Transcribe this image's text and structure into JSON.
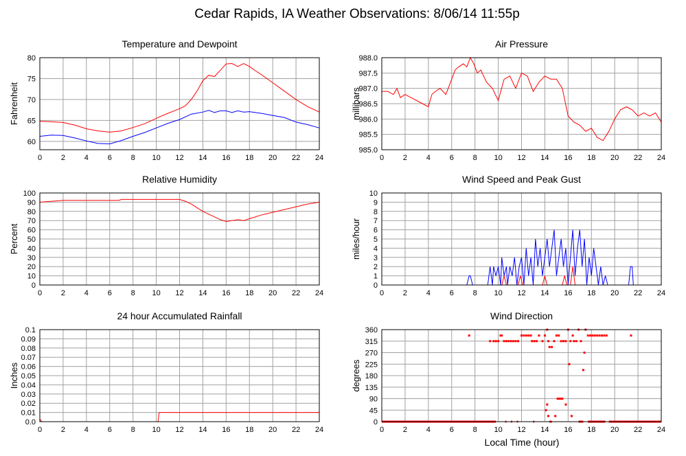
{
  "page": {
    "title": "Cedar Rapids, IA Weather Observations: 8/06/14 11:55p",
    "xlabel": "Local Time (hour)"
  },
  "colors": {
    "primary": "#ff0000",
    "secondary": "#0000ff",
    "grid": "#a0a0a0",
    "frame": "#000000"
  },
  "chart_data": [
    {
      "id": "temp",
      "type": "line",
      "title": "Temperature and Dewpoint",
      "ylabel": "Fahrenheit",
      "xlim": [
        0,
        24
      ],
      "ylim": [
        58,
        80
      ],
      "xticks": [
        0,
        2,
        4,
        6,
        8,
        10,
        12,
        14,
        16,
        18,
        20,
        22,
        24
      ],
      "yticks": [
        60,
        65,
        70,
        75,
        80
      ],
      "series": [
        {
          "role": "temperature",
          "color": "#ff0000",
          "x": [
            0,
            1,
            2,
            3,
            4,
            5,
            6,
            7,
            8,
            9,
            10,
            11,
            12,
            12.5,
            13,
            13.5,
            14,
            14.5,
            15,
            15.5,
            16,
            16.5,
            17,
            17.5,
            18,
            18.5,
            19,
            20,
            21,
            22,
            23,
            24
          ],
          "y": [
            64.8,
            64.7,
            64.5,
            63.9,
            63.0,
            62.5,
            62.2,
            62.5,
            63.3,
            64.2,
            65.5,
            66.7,
            67.8,
            68.5,
            70.0,
            72.0,
            74.5,
            75.8,
            75.5,
            77.0,
            78.5,
            78.6,
            77.9,
            78.6,
            77.9,
            76.9,
            76.0,
            74.0,
            72.0,
            70.0,
            68.3,
            67.0
          ]
        },
        {
          "role": "dewpoint",
          "color": "#0000ff",
          "x": [
            0,
            1,
            2,
            3,
            4,
            5,
            6,
            7,
            8,
            9,
            10,
            11,
            12,
            13,
            14,
            14.5,
            15,
            15.5,
            16,
            16.5,
            17,
            17.5,
            18,
            19,
            20,
            21,
            22,
            23,
            24
          ],
          "y": [
            61.2,
            61.5,
            61.4,
            60.8,
            60.1,
            59.5,
            59.4,
            60.2,
            61.2,
            62.1,
            63.2,
            64.3,
            65.2,
            66.5,
            67.0,
            67.4,
            66.9,
            67.3,
            67.3,
            66.9,
            67.3,
            67.0,
            67.1,
            66.7,
            66.2,
            65.7,
            64.6,
            64.0,
            63.2
          ]
        }
      ]
    },
    {
      "id": "pressure",
      "type": "line",
      "title": "Air Pressure",
      "ylabel": "millibars",
      "xlim": [
        0,
        24
      ],
      "ylim": [
        985.0,
        988.0
      ],
      "xticks": [
        0,
        2,
        4,
        6,
        8,
        10,
        12,
        14,
        16,
        18,
        20,
        22,
        24
      ],
      "yticks": [
        "985.0",
        "985.5",
        "986.0",
        "986.5",
        "987.0",
        "987.5",
        "988.0"
      ],
      "series": [
        {
          "role": "pressure",
          "color": "#ff0000",
          "x": [
            0,
            0.5,
            1,
            1.3,
            1.6,
            2,
            2.5,
            3,
            3.5,
            4,
            4.3,
            4.6,
            5,
            5.5,
            6,
            6.3,
            6.6,
            7,
            7.3,
            7.6,
            7.9,
            8.2,
            8.5,
            9,
            9.5,
            10,
            10.5,
            11,
            11.5,
            12,
            12.5,
            13,
            13.5,
            14,
            14.5,
            15,
            15.5,
            16,
            16.5,
            17,
            17.5,
            18,
            18.5,
            19,
            19.5,
            20,
            20.5,
            21,
            21.5,
            22,
            22.5,
            23,
            23.5,
            24
          ],
          "y": [
            986.9,
            986.9,
            986.8,
            987.0,
            986.7,
            986.8,
            986.7,
            986.6,
            986.5,
            986.4,
            986.8,
            986.9,
            987.0,
            986.8,
            987.3,
            987.6,
            987.7,
            987.8,
            987.7,
            988.0,
            987.8,
            987.5,
            987.6,
            987.2,
            987.0,
            986.6,
            987.3,
            987.4,
            987.0,
            987.5,
            987.4,
            986.9,
            987.2,
            987.4,
            987.3,
            987.3,
            987.0,
            986.1,
            985.9,
            985.8,
            985.6,
            985.7,
            985.4,
            985.3,
            985.6,
            986.0,
            986.3,
            986.4,
            986.3,
            986.1,
            986.2,
            986.1,
            986.2,
            985.9
          ]
        }
      ]
    },
    {
      "id": "rh",
      "type": "line",
      "title": "Relative Humidity",
      "ylabel": "Percent",
      "xlim": [
        0,
        24
      ],
      "ylim": [
        0,
        100
      ],
      "xticks": [
        0,
        2,
        4,
        6,
        8,
        10,
        12,
        14,
        16,
        18,
        20,
        22,
        24
      ],
      "yticks": [
        0,
        10,
        20,
        30,
        40,
        50,
        60,
        70,
        80,
        90,
        100
      ],
      "series": [
        {
          "role": "humidity",
          "color": "#ff0000",
          "x": [
            0,
            1,
            2,
            3,
            4,
            5,
            6,
            6.8,
            7,
            8,
            9,
            10,
            11,
            12,
            12.5,
            13,
            13.5,
            14,
            14.5,
            15,
            15.5,
            16,
            16.5,
            17,
            17.5,
            18,
            19,
            20,
            21,
            22,
            23,
            24
          ],
          "y": [
            90,
            91,
            92,
            92,
            92,
            92,
            92,
            92,
            93,
            93,
            93,
            93,
            93,
            93,
            91,
            88,
            84,
            80,
            77,
            74,
            71,
            69,
            70,
            71,
            70,
            72,
            76,
            79,
            82,
            85,
            88,
            90
          ]
        }
      ]
    },
    {
      "id": "wind",
      "type": "line",
      "title": "Wind Speed and Peak Gust",
      "ylabel": "miles/hour",
      "xlim": [
        0,
        24
      ],
      "ylim": [
        0,
        10
      ],
      "xticks": [
        0,
        2,
        4,
        6,
        8,
        10,
        12,
        14,
        16,
        18,
        20,
        22,
        24
      ],
      "yticks": [
        0,
        1,
        2,
        3,
        4,
        5,
        6,
        7,
        8,
        9,
        10
      ],
      "series": [
        {
          "role": "speed",
          "color": "#0000ff",
          "x": [
            0,
            7.3,
            7.5,
            7.6,
            7.8,
            9.1,
            9.3,
            9.5,
            9.6,
            9.8,
            10.0,
            10.2,
            10.3,
            10.5,
            10.7,
            10.8,
            11.0,
            11.2,
            11.4,
            11.6,
            11.8,
            12.0,
            12.2,
            12.4,
            12.6,
            12.8,
            13.0,
            13.2,
            13.4,
            13.6,
            13.8,
            14.0,
            14.2,
            14.4,
            14.6,
            14.8,
            15.0,
            15.2,
            15.4,
            15.6,
            15.8,
            16.0,
            16.2,
            16.4,
            16.6,
            16.8,
            17.0,
            17.2,
            17.4,
            17.6,
            17.8,
            18.0,
            18.2,
            18.4,
            18.6,
            18.8,
            19.0,
            19.2,
            19.4,
            19.6,
            21.2,
            21.35,
            21.5,
            21.6,
            24
          ],
          "y": [
            0,
            0,
            1,
            1,
            0,
            0,
            2,
            0,
            2,
            1,
            2,
            0,
            3,
            1,
            2,
            0,
            2,
            1,
            3,
            0,
            2,
            3,
            0,
            4,
            1,
            3,
            0,
            5,
            2,
            4,
            1,
            3,
            5,
            2,
            4,
            6,
            1,
            3,
            5,
            2,
            4,
            0,
            3,
            6,
            1,
            4,
            6,
            2,
            5,
            0,
            3,
            1,
            4,
            2,
            0,
            2,
            0,
            1,
            0,
            0,
            0,
            2,
            2,
            0,
            0
          ]
        },
        {
          "role": "gust",
          "color": "#ff0000",
          "x": [
            0,
            10.3,
            10.5,
            10.7,
            11.7,
            11.9,
            12.1,
            13.8,
            14.0,
            14.2,
            15.5,
            15.7,
            15.9,
            16.2,
            16.4,
            16.6,
            24
          ],
          "y": [
            0,
            0,
            1,
            0,
            0,
            1,
            0,
            0,
            1,
            0,
            0,
            1,
            0,
            0,
            2,
            0,
            0
          ]
        }
      ]
    },
    {
      "id": "rain",
      "type": "line",
      "title": "24 hour Accumulated Rainfall",
      "ylabel": "Inches",
      "xlim": [
        0,
        24
      ],
      "ylim": [
        0,
        0.1
      ],
      "xticks": [
        0,
        2,
        4,
        6,
        8,
        10,
        12,
        14,
        16,
        18,
        20,
        22,
        24
      ],
      "yticks": [
        "0.0",
        "0.01",
        "0.02",
        "0.03",
        "0.04",
        "0.05",
        "0.06",
        "0.07",
        "0.08",
        "0.09",
        "0.1"
      ],
      "series": [
        {
          "role": "rainfall",
          "color": "#ff0000",
          "x": [
            0,
            0.1,
            0.2,
            10.15,
            10.25,
            24
          ],
          "y": [
            0.003,
            0.001,
            0,
            0,
            0.01,
            0.01
          ]
        }
      ]
    },
    {
      "id": "dir",
      "type": "scatter",
      "title": "Wind Direction",
      "ylabel": "degrees",
      "xlim": [
        0,
        24
      ],
      "ylim": [
        0,
        360
      ],
      "xticks": [
        0,
        2,
        4,
        6,
        8,
        10,
        12,
        14,
        16,
        18,
        20,
        22,
        24
      ],
      "yticks": [
        0,
        45,
        90,
        135,
        180,
        225,
        270,
        315,
        360
      ],
      "series": [
        {
          "role": "direction",
          "color": "#ff0000",
          "points": [
            [
              7.5,
              337
            ],
            [
              9.3,
              315
            ],
            [
              9.6,
              315
            ],
            [
              9.8,
              315
            ],
            [
              10.0,
              315
            ],
            [
              10.2,
              337
            ],
            [
              10.3,
              337
            ],
            [
              10.5,
              315
            ],
            [
              10.7,
              315
            ],
            [
              10.9,
              315
            ],
            [
              11.1,
              315
            ],
            [
              11.3,
              315
            ],
            [
              11.5,
              315
            ],
            [
              11.7,
              315
            ],
            [
              12.0,
              337
            ],
            [
              12.2,
              337
            ],
            [
              12.4,
              337
            ],
            [
              12.6,
              337
            ],
            [
              12.8,
              337
            ],
            [
              12.9,
              315
            ],
            [
              13.1,
              315
            ],
            [
              13.3,
              315
            ],
            [
              13.5,
              337
            ],
            [
              13.8,
              315
            ],
            [
              14.0,
              337
            ],
            [
              14.2,
              360
            ],
            [
              14.3,
              315
            ],
            [
              14.4,
              292
            ],
            [
              14.6,
              292
            ],
            [
              14.8,
              315
            ],
            [
              15.0,
              337
            ],
            [
              15.2,
              337
            ],
            [
              15.4,
              315
            ],
            [
              15.6,
              315
            ],
            [
              15.8,
              315
            ],
            [
              16.0,
              360
            ],
            [
              16.1,
              225
            ],
            [
              16.2,
              315
            ],
            [
              16.4,
              337
            ],
            [
              16.5,
              315
            ],
            [
              16.7,
              315
            ],
            [
              16.9,
              360
            ],
            [
              17.1,
              315
            ],
            [
              17.3,
              202
            ],
            [
              17.4,
              270
            ],
            [
              17.5,
              360
            ],
            [
              17.7,
              337
            ],
            [
              17.9,
              337
            ],
            [
              18.1,
              337
            ],
            [
              18.3,
              337
            ],
            [
              18.5,
              337
            ],
            [
              18.7,
              337
            ],
            [
              18.9,
              337
            ],
            [
              19.1,
              337
            ],
            [
              19.3,
              337
            ],
            [
              21.4,
              337
            ],
            [
              14.9,
              22
            ],
            [
              15.1,
              90
            ],
            [
              15.2,
              90
            ],
            [
              15.3,
              90
            ],
            [
              15.4,
              90
            ],
            [
              15.5,
              90
            ],
            [
              14.2,
              67
            ],
            [
              14.1,
              45
            ],
            [
              14.3,
              22
            ],
            [
              16.3,
              22
            ],
            [
              15.8,
              67
            ]
          ]
        },
        {
          "role": "direction-calm",
          "color": "#ff0000",
          "calm_value": 0,
          "calm_ranges": [
            [
              0,
              9.8
            ],
            [
              10.6,
              10.7
            ],
            [
              11.1,
              11.2
            ],
            [
              11.6,
              11.7
            ],
            [
              13.0,
              13.1
            ],
            [
              14.4,
              14.6
            ],
            [
              16.9,
              17.3
            ],
            [
              17.7,
              19.2
            ],
            [
              19.5,
              24
            ]
          ]
        }
      ]
    }
  ]
}
